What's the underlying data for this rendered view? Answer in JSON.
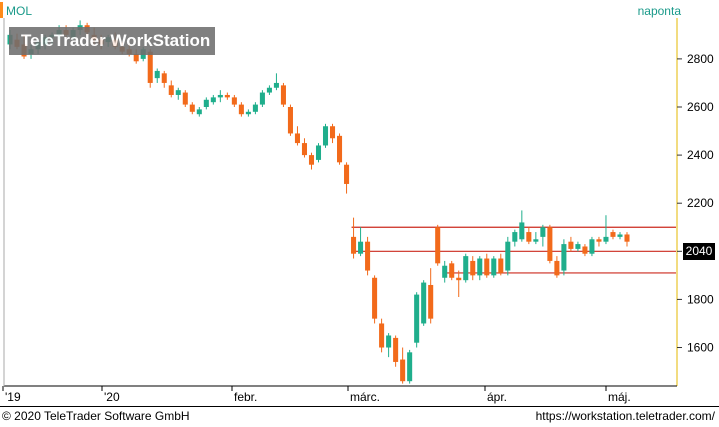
{
  "header": {
    "instrument": "MOL",
    "frequency": "naponta"
  },
  "watermark": "TeleTrader WorkStation",
  "last_price_label": "2040",
  "footer": {
    "copyright": "© 2020 TeleTrader Software GmbH",
    "url": "https://workstation.teletrader.com/"
  },
  "colors": {
    "up": "#1fae8c",
    "down": "#f26a1b",
    "level_line": "#cc2a1e",
    "axis_line": "#e6b800"
  },
  "chart_data": {
    "type": "candlestick",
    "title": "MOL",
    "ylim": [
      1440,
      2970
    ],
    "y_ticks": [
      1600,
      1800,
      2000,
      2200,
      2400,
      2600,
      2800
    ],
    "x_labels": [
      "'19",
      "'20",
      "febr.",
      "márc.",
      "ápr.",
      "máj."
    ],
    "horizontal_levels": [
      2100,
      2000,
      1910
    ],
    "last_price": 2040,
    "candles": [
      {
        "o": 2860,
        "h": 2920,
        "l": 2840,
        "c": 2900
      },
      {
        "o": 2880,
        "h": 2905,
        "l": 2840,
        "c": 2850
      },
      {
        "o": 2860,
        "h": 2900,
        "l": 2800,
        "c": 2810
      },
      {
        "o": 2820,
        "h": 2860,
        "l": 2800,
        "c": 2840
      },
      {
        "o": 2840,
        "h": 2880,
        "l": 2820,
        "c": 2870
      },
      {
        "o": 2860,
        "h": 2900,
        "l": 2840,
        "c": 2890
      },
      {
        "o": 2890,
        "h": 2910,
        "l": 2860,
        "c": 2900
      },
      {
        "o": 2900,
        "h": 2940,
        "l": 2880,
        "c": 2920
      },
      {
        "o": 2920,
        "h": 2940,
        "l": 2890,
        "c": 2900
      },
      {
        "o": 2890,
        "h": 2930,
        "l": 2880,
        "c": 2920
      },
      {
        "o": 2920,
        "h": 2960,
        "l": 2900,
        "c": 2940
      },
      {
        "o": 2940,
        "h": 2950,
        "l": 2900,
        "c": 2910
      },
      {
        "o": 2900,
        "h": 2930,
        "l": 2860,
        "c": 2880
      },
      {
        "o": 2880,
        "h": 2900,
        "l": 2840,
        "c": 2860
      },
      {
        "o": 2870,
        "h": 2900,
        "l": 2850,
        "c": 2890
      },
      {
        "o": 2880,
        "h": 2910,
        "l": 2840,
        "c": 2850
      },
      {
        "o": 2850,
        "h": 2870,
        "l": 2820,
        "c": 2830
      },
      {
        "o": 2840,
        "h": 2860,
        "l": 2810,
        "c": 2820
      },
      {
        "o": 2820,
        "h": 2840,
        "l": 2780,
        "c": 2790
      },
      {
        "o": 2800,
        "h": 2850,
        "l": 2790,
        "c": 2840
      },
      {
        "o": 2830,
        "h": 2840,
        "l": 2680,
        "c": 2700
      },
      {
        "o": 2720,
        "h": 2760,
        "l": 2700,
        "c": 2750
      },
      {
        "o": 2740,
        "h": 2750,
        "l": 2680,
        "c": 2700
      },
      {
        "o": 2690,
        "h": 2710,
        "l": 2640,
        "c": 2650
      },
      {
        "o": 2650,
        "h": 2680,
        "l": 2630,
        "c": 2670
      },
      {
        "o": 2660,
        "h": 2670,
        "l": 2600,
        "c": 2610
      },
      {
        "o": 2610,
        "h": 2620,
        "l": 2570,
        "c": 2580
      },
      {
        "o": 2570,
        "h": 2600,
        "l": 2560,
        "c": 2590
      },
      {
        "o": 2600,
        "h": 2640,
        "l": 2590,
        "c": 2630
      },
      {
        "o": 2620,
        "h": 2650,
        "l": 2610,
        "c": 2640
      },
      {
        "o": 2640,
        "h": 2670,
        "l": 2620,
        "c": 2650
      },
      {
        "o": 2650,
        "h": 2660,
        "l": 2630,
        "c": 2640
      },
      {
        "o": 2640,
        "h": 2650,
        "l": 2600,
        "c": 2610
      },
      {
        "o": 2610,
        "h": 2620,
        "l": 2560,
        "c": 2570
      },
      {
        "o": 2570,
        "h": 2590,
        "l": 2560,
        "c": 2580
      },
      {
        "o": 2580,
        "h": 2620,
        "l": 2570,
        "c": 2610
      },
      {
        "o": 2610,
        "h": 2670,
        "l": 2600,
        "c": 2660
      },
      {
        "o": 2660,
        "h": 2690,
        "l": 2650,
        "c": 2680
      },
      {
        "o": 2680,
        "h": 2740,
        "l": 2670,
        "c": 2700
      },
      {
        "o": 2690,
        "h": 2700,
        "l": 2600,
        "c": 2610
      },
      {
        "o": 2600,
        "h": 2610,
        "l": 2480,
        "c": 2490
      },
      {
        "o": 2490,
        "h": 2520,
        "l": 2440,
        "c": 2450
      },
      {
        "o": 2450,
        "h": 2470,
        "l": 2390,
        "c": 2400
      },
      {
        "o": 2400,
        "h": 2410,
        "l": 2340,
        "c": 2360
      },
      {
        "o": 2380,
        "h": 2450,
        "l": 2370,
        "c": 2440
      },
      {
        "o": 2440,
        "h": 2530,
        "l": 2430,
        "c": 2520
      },
      {
        "o": 2520,
        "h": 2530,
        "l": 2450,
        "c": 2470
      },
      {
        "o": 2480,
        "h": 2490,
        "l": 2360,
        "c": 2370
      },
      {
        "o": 2360,
        "h": 2370,
        "l": 2240,
        "c": 2280
      },
      {
        "o": 2060,
        "h": 2140,
        "l": 1970,
        "c": 1990
      },
      {
        "o": 1990,
        "h": 2100,
        "l": 1980,
        "c": 2040
      },
      {
        "o": 2040,
        "h": 2060,
        "l": 1900,
        "c": 1920
      },
      {
        "o": 1890,
        "h": 1900,
        "l": 1700,
        "c": 1720
      },
      {
        "o": 1700,
        "h": 1720,
        "l": 1580,
        "c": 1600
      },
      {
        "o": 1600,
        "h": 1660,
        "l": 1560,
        "c": 1650
      },
      {
        "o": 1640,
        "h": 1650,
        "l": 1520,
        "c": 1540
      },
      {
        "o": 1550,
        "h": 1600,
        "l": 1450,
        "c": 1460
      },
      {
        "o": 1460,
        "h": 1590,
        "l": 1450,
        "c": 1580
      },
      {
        "o": 1620,
        "h": 1830,
        "l": 1600,
        "c": 1820
      },
      {
        "o": 1700,
        "h": 1880,
        "l": 1690,
        "c": 1870
      },
      {
        "o": 1860,
        "h": 1930,
        "l": 1700,
        "c": 1720
      },
      {
        "o": 2100,
        "h": 2110,
        "l": 1940,
        "c": 1950
      },
      {
        "o": 1890,
        "h": 1960,
        "l": 1870,
        "c": 1940
      },
      {
        "o": 1950,
        "h": 1960,
        "l": 1880,
        "c": 1890
      },
      {
        "o": 1890,
        "h": 1920,
        "l": 1810,
        "c": 1880
      },
      {
        "o": 1880,
        "h": 1990,
        "l": 1870,
        "c": 1980
      },
      {
        "o": 1960,
        "h": 1980,
        "l": 1880,
        "c": 1900
      },
      {
        "o": 1900,
        "h": 1980,
        "l": 1880,
        "c": 1970
      },
      {
        "o": 1970,
        "h": 1990,
        "l": 1890,
        "c": 1900
      },
      {
        "o": 1900,
        "h": 1980,
        "l": 1890,
        "c": 1970
      },
      {
        "o": 1970,
        "h": 1990,
        "l": 1900,
        "c": 1910
      },
      {
        "o": 1920,
        "h": 2060,
        "l": 1900,
        "c": 2040
      },
      {
        "o": 2040,
        "h": 2090,
        "l": 2020,
        "c": 2080
      },
      {
        "o": 2050,
        "h": 2170,
        "l": 2040,
        "c": 2120
      },
      {
        "o": 2080,
        "h": 2100,
        "l": 2030,
        "c": 2040
      },
      {
        "o": 2040,
        "h": 2080,
        "l": 2030,
        "c": 2050
      },
      {
        "o": 2060,
        "h": 2110,
        "l": 2020,
        "c": 2100
      },
      {
        "o": 2100,
        "h": 2110,
        "l": 1950,
        "c": 1960
      },
      {
        "o": 1960,
        "h": 1980,
        "l": 1890,
        "c": 1900
      },
      {
        "o": 1920,
        "h": 2050,
        "l": 1900,
        "c": 2030
      },
      {
        "o": 2040,
        "h": 2060,
        "l": 2000,
        "c": 2010
      },
      {
        "o": 2010,
        "h": 2040,
        "l": 2000,
        "c": 2030
      },
      {
        "o": 2020,
        "h": 2030,
        "l": 1980,
        "c": 1990
      },
      {
        "o": 1990,
        "h": 2060,
        "l": 1980,
        "c": 2050
      },
      {
        "o": 2050,
        "h": 2060,
        "l": 2020,
        "c": 2040
      },
      {
        "o": 2040,
        "h": 2150,
        "l": 2030,
        "c": 2060
      },
      {
        "o": 2080,
        "h": 2090,
        "l": 2050,
        "c": 2060
      },
      {
        "o": 2060,
        "h": 2080,
        "l": 2050,
        "c": 2070
      },
      {
        "o": 2070,
        "h": 2080,
        "l": 2020,
        "c": 2040
      }
    ]
  }
}
